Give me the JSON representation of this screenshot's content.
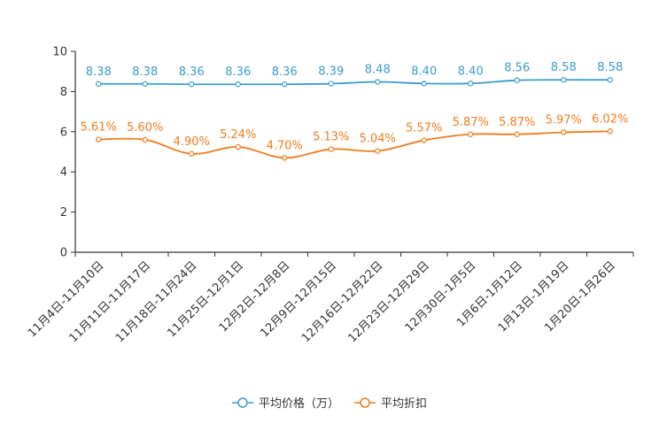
{
  "chart_data": {
    "type": "line",
    "title": "",
    "xlabel": "",
    "ylabel": "",
    "ylim": [
      0,
      10
    ],
    "yticks": [
      0,
      2,
      4,
      6,
      8,
      10
    ],
    "categories": [
      "11月4日-11月10日",
      "11月11日-11月17日",
      "11月18日-11月24日",
      "11月25日-12月1日",
      "12月2日-12月8日",
      "12月9日-12月15日",
      "12月16日-12月22日",
      "12月23日-12月29日",
      "12月30日-1月5日",
      "1月6日-1月12日",
      "1月13日-1月19日",
      "1月20日-1月26日"
    ],
    "series": [
      {
        "name": "平均价格（万）",
        "color": "#3a9ccc",
        "values": [
          8.38,
          8.38,
          8.36,
          8.36,
          8.36,
          8.39,
          8.48,
          8.4,
          8.4,
          8.56,
          8.58,
          8.58
        ],
        "labels": [
          "8.38",
          "8.38",
          "8.36",
          "8.36",
          "8.36",
          "8.39",
          "8.48",
          "8.40",
          "8.40",
          "8.56",
          "8.58",
          "8.58"
        ]
      },
      {
        "name": "平均折扣",
        "color": "#f07c1b",
        "values": [
          5.61,
          5.6,
          4.9,
          5.24,
          4.7,
          5.13,
          5.04,
          5.57,
          5.87,
          5.87,
          5.97,
          6.02
        ],
        "labels": [
          "5.61%",
          "5.60%",
          "4.90%",
          "5.24%",
          "4.70%",
          "5.13%",
          "5.04%",
          "5.57%",
          "5.87%",
          "5.87%",
          "5.97%",
          "6.02%"
        ]
      }
    ],
    "legend_position": "bottom-center",
    "grid": false
  }
}
